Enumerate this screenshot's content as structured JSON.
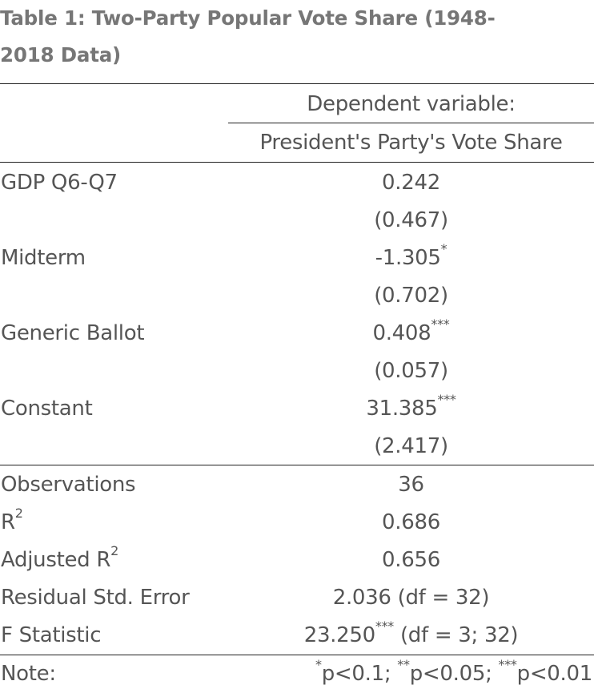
{
  "table": {
    "caption_line1": "Table 1: Two-Party Popular Vote Share (1948-",
    "caption_line2": "2018 Data)",
    "dependent_variable_label": "Dependent variable:",
    "dependent_variable_name": "President's Party's Vote Share",
    "coefficients": [
      {
        "label": "GDP Q6-Q7",
        "estimate": "0.242",
        "stars": "",
        "se": "(0.467)"
      },
      {
        "label": "Midterm",
        "estimate": "-1.305",
        "stars": "*",
        "se": "(0.702)"
      },
      {
        "label": "Generic Ballot",
        "estimate": "0.408",
        "stars": "***",
        "se": "(0.057)"
      },
      {
        "label": "Constant",
        "estimate": "31.385",
        "stars": "***",
        "se": "(2.417)"
      }
    ],
    "stats": {
      "observations_label": "Observations",
      "observations_value": "36",
      "r2_label": "R",
      "r2_sup": "2",
      "r2_value": "0.686",
      "adj_r2_label": "Adjusted R",
      "adj_r2_sup": "2",
      "adj_r2_value": "0.656",
      "rse_label": "Residual Std. Error",
      "rse_value": "2.036 (df = 32)",
      "f_label": "F Statistic",
      "f_value": "23.250",
      "f_stars": "***",
      "f_df": " (df = 3; 32)"
    },
    "note": {
      "label": "Note:",
      "s1": "*",
      "t1": "p<0.1; ",
      "s2": "**",
      "t2": "p<0.05; ",
      "s3": "***",
      "t3": "p<0.01"
    }
  }
}
